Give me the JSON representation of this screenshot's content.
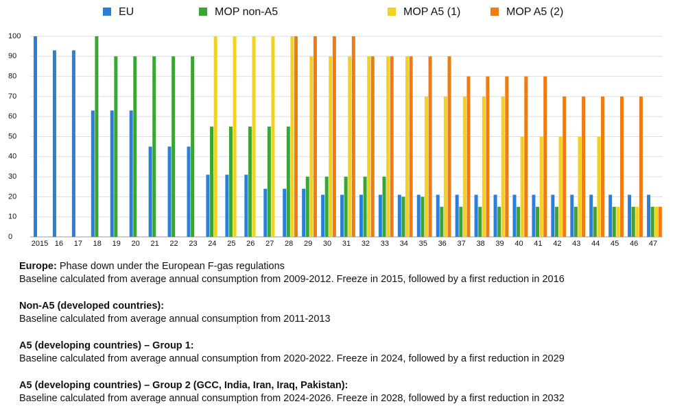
{
  "chart_data": {
    "type": "bar",
    "categories": [
      "2015",
      "16",
      "17",
      "18",
      "19",
      "20",
      "21",
      "22",
      "23",
      "24",
      "25",
      "26",
      "27",
      "28",
      "29",
      "30",
      "31",
      "32",
      "33",
      "34",
      "35",
      "36",
      "37",
      "38",
      "39",
      "40",
      "41",
      "42",
      "43",
      "44",
      "45",
      "46",
      "47"
    ],
    "series": [
      {
        "name": "EU",
        "color": "#2a80d8",
        "values": [
          100,
          93,
          93,
          63,
          63,
          63,
          45,
          45,
          45,
          31,
          31,
          31,
          24,
          24,
          24,
          21,
          21,
          21,
          21,
          21,
          21,
          21,
          21,
          21,
          21,
          21,
          21,
          21,
          21,
          21,
          21,
          21,
          21
        ]
      },
      {
        "name": "MOP non-A5",
        "color": "#3aa534",
        "values": [
          null,
          null,
          null,
          100,
          90,
          90,
          90,
          90,
          90,
          55,
          55,
          55,
          55,
          55,
          30,
          30,
          30,
          30,
          30,
          20,
          20,
          15,
          15,
          15,
          15,
          15,
          15,
          15,
          15,
          15,
          15,
          15,
          15
        ]
      },
      {
        "name": "MOP A5 (1)",
        "color": "#f2d21e",
        "values": [
          null,
          null,
          null,
          null,
          null,
          null,
          null,
          null,
          null,
          100,
          100,
          100,
          100,
          100,
          90,
          90,
          90,
          90,
          90,
          90,
          70,
          70,
          70,
          70,
          70,
          50,
          50,
          50,
          50,
          50,
          15,
          15,
          15
        ]
      },
      {
        "name": "MOP A5 (2)",
        "color": "#ef7c12",
        "values": [
          null,
          null,
          null,
          null,
          null,
          null,
          null,
          null,
          null,
          null,
          null,
          null,
          null,
          100,
          100,
          100,
          100,
          90,
          90,
          90,
          90,
          90,
          80,
          80,
          80,
          80,
          80,
          70,
          70,
          70,
          70,
          70,
          15
        ]
      }
    ],
    "ylim": [
      0,
      100
    ],
    "yticks": [
      0,
      10,
      20,
      30,
      40,
      50,
      60,
      70,
      80,
      90,
      100
    ],
    "grid": true,
    "legend": "top"
  },
  "notes": [
    {
      "heading": "Europe:",
      "text": "Phase down under the European F-gas regulations",
      "body": "Baseline calculated from average annual consumption from 2009-2012. Freeze in 2015, followed by a first reduction in 2016"
    },
    {
      "heading": "Non-A5 (developed countries):",
      "body": "Baseline calculated from average annual consumption from 2011-2013"
    },
    {
      "heading": "A5 (developing countries) – Group 1:",
      "body": "Baseline calculated from average annual consumption from 2020-2022. Freeze in 2024, followed by a first reduction in 2029"
    },
    {
      "heading": "A5 (developing countries) – Group 2 (GCC, India, Iran, Iraq, Pakistan):",
      "body": "Baseline calculated from average annual consumption from 2024-2026. Freeze in 2028, followed by a first reduction in 2032"
    }
  ]
}
